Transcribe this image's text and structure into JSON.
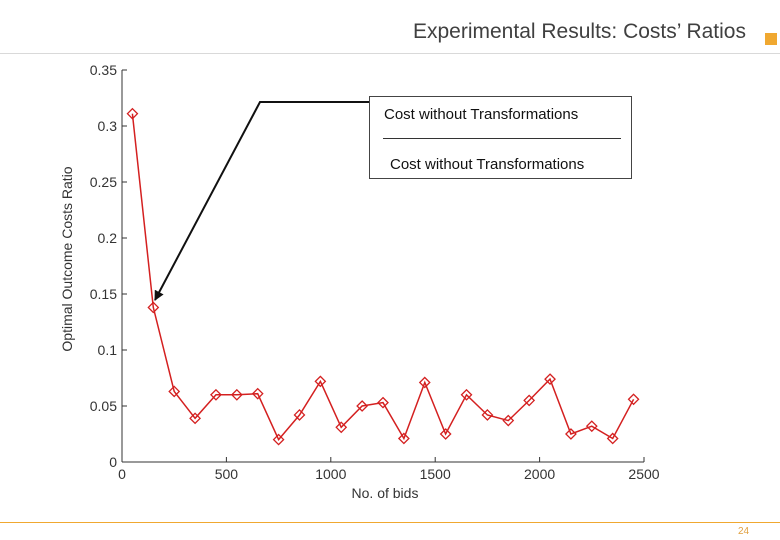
{
  "slide": {
    "title": "Experimental Results: Costs’ Ratios",
    "page_number": "24",
    "accent_color": "#f0a830"
  },
  "callout": {
    "line1": "Cost without Transformations",
    "line2": "Cost without Transformations"
  },
  "chart_data": {
    "type": "line",
    "title": "",
    "xlabel": "No. of bids",
    "ylabel": "Optimal Outcome Costs Ratio",
    "xlim": [
      0,
      2500
    ],
    "ylim": [
      0,
      0.35
    ],
    "x_ticks": [
      0,
      500,
      1000,
      1500,
      2000,
      2500
    ],
    "x_tick_labels": [
      "0",
      "500",
      "1000",
      "1500",
      "2000",
      "2500"
    ],
    "y_ticks": [
      0,
      0.05,
      0.1,
      0.15,
      0.2,
      0.25,
      0.3,
      0.35
    ],
    "y_tick_labels": [
      "0",
      "0.05",
      "0.1",
      "0.15",
      "0.2",
      "0.25",
      "0.3",
      "0.35"
    ],
    "grid": false,
    "series": [
      {
        "color": "#d42020",
        "marker": "diamond",
        "x": [
          50,
          150,
          250,
          350,
          450,
          550,
          650,
          750,
          850,
          950,
          1050,
          1150,
          1250,
          1350,
          1450,
          1550,
          1650,
          1750,
          1850,
          1950,
          2050,
          2150,
          2250,
          2350,
          2450
        ],
        "y": [
          0.311,
          0.138,
          0.063,
          0.039,
          0.06,
          0.06,
          0.061,
          0.02,
          0.042,
          0.072,
          0.031,
          0.05,
          0.053,
          0.021,
          0.071,
          0.025,
          0.06,
          0.042,
          0.037,
          0.055,
          0.074,
          0.025,
          0.032,
          0.021,
          0.056
        ]
      }
    ]
  }
}
